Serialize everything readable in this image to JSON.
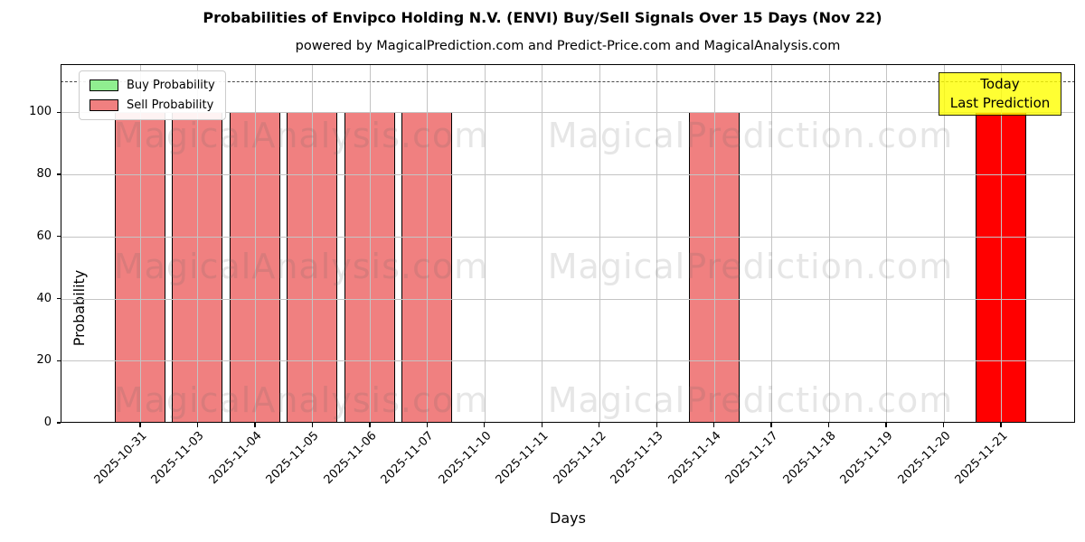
{
  "chart_data": {
    "type": "bar",
    "title": "Probabilities of Envipco Holding N.V. (ENVI) Buy/Sell Signals Over 15 Days (Nov 22)",
    "subtitle": "powered by MagicalPrediction.com and Predict-Price.com and MagicalAnalysis.com",
    "xlabel": "Days",
    "ylabel": "Probability",
    "ylim": [
      0,
      115.5
    ],
    "yticks": [
      0,
      20,
      40,
      60,
      80,
      100
    ],
    "grid": true,
    "categories": [
      "2025-10-31",
      "2025-11-03",
      "2025-11-04",
      "2025-11-05",
      "2025-11-06",
      "2025-11-07",
      "2025-11-10",
      "2025-11-11",
      "2025-11-12",
      "2025-11-13",
      "2025-11-14",
      "2025-11-17",
      "2025-11-18",
      "2025-11-19",
      "2025-11-20",
      "2025-11-21"
    ],
    "series": [
      {
        "name": "Buy Probability",
        "color": "#90ee90",
        "values": [
          0,
          0,
          0,
          0,
          0,
          0,
          0,
          0,
          0,
          0,
          0,
          0,
          0,
          0,
          0,
          0
        ]
      },
      {
        "name": "Sell Probability",
        "color": "#f08080",
        "values": [
          100,
          100,
          100,
          100,
          100,
          100,
          0,
          0,
          0,
          0,
          100,
          0,
          0,
          0,
          0,
          100
        ]
      }
    ],
    "bar_colors": [
      "#f08080",
      "#f08080",
      "#f08080",
      "#f08080",
      "#f08080",
      "#f08080",
      "#f08080",
      "#f08080",
      "#f08080",
      "#f08080",
      "#f08080",
      "#f08080",
      "#f08080",
      "#f08080",
      "#f08080",
      "#ff0000"
    ],
    "threshold_line": {
      "y": 110,
      "style": "dashed",
      "color": "#4a4a4a"
    },
    "legend": {
      "position": "upper-left",
      "entries": [
        {
          "label": "Buy Probability",
          "color": "#90ee90"
        },
        {
          "label": "Sell Probability",
          "color": "#f08080"
        }
      ]
    },
    "annotation": {
      "line1": "Today",
      "line2": "Last Prediction",
      "bg": "#ffff00",
      "border": "#000000",
      "target_category": "2025-11-21"
    },
    "watermarks": [
      "MagicalAnalysis.com",
      "MagicalPrediction.com"
    ]
  }
}
